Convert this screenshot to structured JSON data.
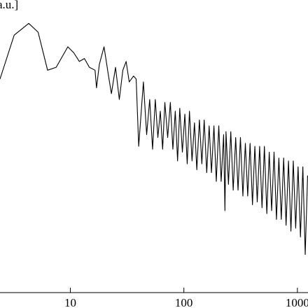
{
  "chart_data": {
    "type": "line",
    "y_label": "a.u.]",
    "xscale": "log",
    "color": "#000000",
    "x": [
      2.4,
      3.2,
      4.3,
      5.2,
      6.3,
      7.5,
      9.5,
      10.7,
      12,
      13.3,
      14.7,
      16.5,
      17,
      18,
      19.8,
      21.7,
      23,
      25,
      27,
      29,
      31,
      33,
      36,
      38,
      40,
      44,
      47,
      50,
      53,
      56,
      59,
      62,
      65,
      68,
      72,
      76,
      80,
      84,
      88,
      92,
      97,
      102,
      107,
      112,
      118,
      124,
      130,
      137,
      144,
      151,
      159,
      167,
      175,
      184,
      193,
      203,
      213,
      224,
      230,
      235,
      247,
      259,
      272,
      286,
      300,
      315,
      331,
      348,
      365,
      383,
      402,
      422,
      443,
      465,
      488,
      512,
      538,
      565,
      593,
      623,
      654,
      687,
      721,
      757,
      795,
      835,
      877,
      920,
      966,
      1014,
      1064,
      1117,
      1172,
      1230
    ],
    "values": [
      73,
      88,
      92,
      89,
      76,
      77,
      84,
      82,
      79,
      80,
      77,
      76,
      70,
      78,
      84,
      74,
      68,
      77,
      66,
      76,
      79,
      72,
      74,
      73,
      50,
      72,
      54,
      66,
      49,
      66,
      53,
      62,
      49,
      65,
      53,
      65,
      49,
      62,
      45,
      63,
      48,
      61,
      44,
      62,
      45,
      58,
      42,
      59,
      44,
      59,
      41,
      57,
      41,
      57,
      38,
      57,
      38,
      54,
      28,
      55,
      37,
      55,
      35,
      53,
      35,
      53,
      33,
      51,
      33,
      51,
      30,
      50,
      31,
      50,
      29,
      50,
      27,
      48,
      28,
      48,
      25,
      46,
      25,
      46,
      23,
      45,
      21,
      45,
      22,
      43,
      19,
      43,
      13,
      40
    ],
    "xlim": [
      2.4,
      1240
    ],
    "ylim": [
      0,
      100
    ],
    "xticks": [
      10,
      100,
      1000
    ]
  }
}
